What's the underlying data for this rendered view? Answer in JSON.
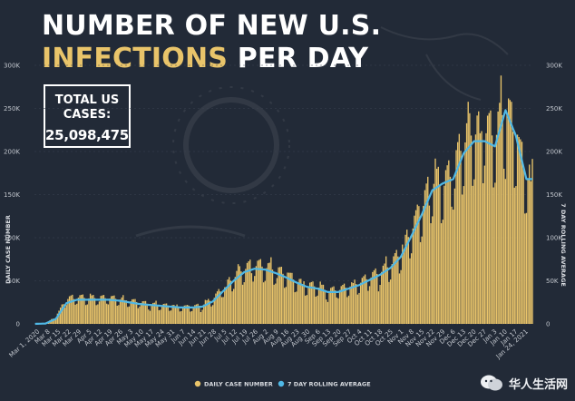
{
  "header": {
    "title_line1": "NUMBER OF NEW U.S.",
    "title_highlight": "INFECTIONS",
    "title_rest": "PER DAY"
  },
  "total_box": {
    "label": "TOTAL US CASES:",
    "value": "25,098,475"
  },
  "watermark": {
    "text": "华人生活网"
  },
  "colors": {
    "bar": "#e9c46a",
    "line": "#4fb8e6",
    "background": "#222a37",
    "highlight": "#e9c46a"
  },
  "chart_data": {
    "type": "bar",
    "title": "NUMBER OF NEW U.S. INFECTIONS PER DAY",
    "ylabel": "DAILY CASE NUMBER",
    "y2label": "7 DAY ROLLING AVERAGE",
    "ylim": [
      0,
      300000
    ],
    "yticks": [
      0,
      50000,
      100000,
      150000,
      200000,
      250000,
      300000
    ],
    "ytick_labels": [
      "0",
      "50K",
      "100K",
      "150K",
      "200K",
      "250K",
      "300K"
    ],
    "legend": [
      "DAILY CASE NUMBER",
      "7 DAY ROLLING AVERAGE"
    ],
    "legend_position": "bottom-center",
    "x_tick_labels": [
      "Mar 1, 2020",
      "Mar 8",
      "Mar 15",
      "Mar 22",
      "Mar 29",
      "Apr 5",
      "Apr 12",
      "Apr 19",
      "Apr 26",
      "May 3",
      "May 10",
      "May 17",
      "May 24",
      "May 31",
      "Jun 7",
      "Jun 14",
      "Jun 21",
      "Jun 28",
      "Jul 5",
      "Jul 12",
      "Jul 19",
      "Jul 26",
      "Aug 2",
      "Aug 9",
      "Aug 16",
      "Aug 23",
      "Aug 30",
      "Sep 6",
      "Sep 13",
      "Sep 20",
      "Sep 27",
      "Oct 4",
      "Oct 11",
      "Oct 18",
      "Oct 25",
      "Nov 1",
      "Nov 8",
      "Nov 15",
      "Nov 22",
      "Nov 29",
      "Dec 6",
      "Dec 13",
      "Dec 20",
      "Dec 27",
      "Jan 3",
      "Jan 10",
      "Jan 17",
      "Jan 24, 2021"
    ],
    "weekly_daily_cases": [
      100,
      600,
      8000,
      28000,
      30000,
      29000,
      29000,
      29000,
      28000,
      26000,
      24000,
      22000,
      21000,
      20000,
      19000,
      19000,
      21000,
      28000,
      40000,
      52000,
      62000,
      66000,
      64000,
      60000,
      55000,
      48000,
      43000,
      42000,
      37000,
      38000,
      42000,
      46000,
      52000,
      58000,
      66000,
      80000,
      105000,
      130000,
      160000,
      155000,
      170000,
      205000,
      215000,
      218000,
      210000,
      245000,
      205000,
      165000
    ],
    "weekly_rolling_average": [
      40,
      400,
      6000,
      24000,
      28000,
      28000,
      28000,
      28000,
      27000,
      25000,
      23000,
      22000,
      21000,
      20000,
      19000,
      19000,
      20000,
      26000,
      38000,
      50000,
      60000,
      64000,
      63000,
      59000,
      54000,
      48000,
      43000,
      41000,
      37000,
      37000,
      41000,
      45000,
      51000,
      57000,
      65000,
      78000,
      102000,
      127000,
      155000,
      163000,
      168000,
      198000,
      212000,
      212000,
      206000,
      248000,
      218000,
      168000
    ]
  }
}
